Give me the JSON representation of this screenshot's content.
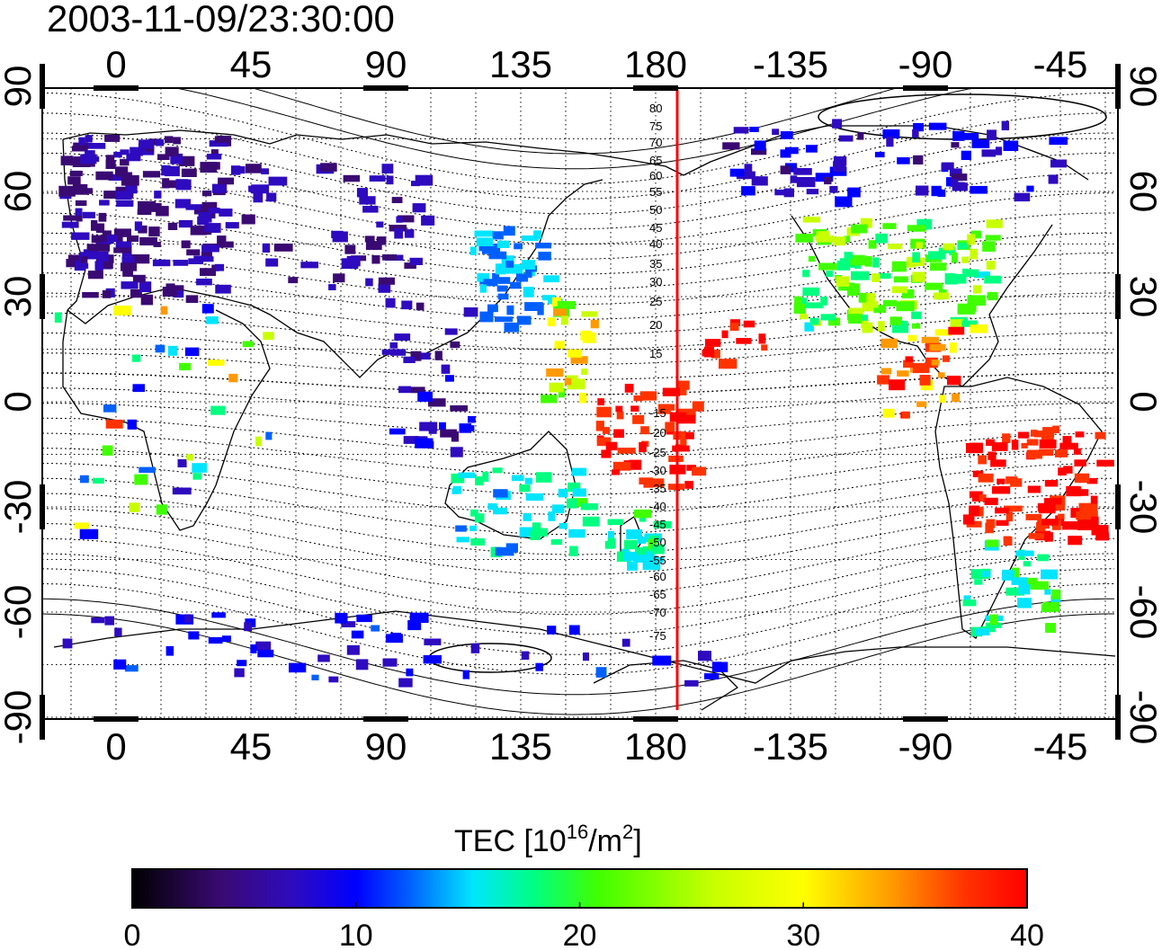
{
  "title": "2003-11-09/23:30:00",
  "map": {
    "top_lon_labels": [
      "0",
      "45",
      "90",
      "135",
      "180",
      "-135",
      "-90",
      "-45"
    ],
    "bottom_lon_labels": [
      "0",
      "45",
      "90",
      "135",
      "180",
      "-135",
      "-90",
      "-45"
    ],
    "left_lat_labels": [
      "90",
      "60",
      "30",
      "0",
      "-30",
      "-60",
      "-90"
    ],
    "right_lat_labels": [
      "90",
      "60",
      "30",
      "0",
      "-30",
      "-60",
      "-90"
    ],
    "magnetic_latitude_labels": [
      "80",
      "75",
      "70",
      "65",
      "60",
      "55",
      "50",
      "45",
      "40",
      "35",
      "30",
      "25",
      "20",
      "15",
      "-15",
      "-20",
      "-25",
      "-30",
      "-35",
      "-40",
      "-45",
      "-50",
      "-55",
      "-60",
      "-65",
      "-70",
      "-75"
    ],
    "red_line_label": "",
    "colors": {
      "red_line": "#ff0000",
      "grid": "#000000"
    }
  },
  "colorbar": {
    "title_main": "TEC  [10",
    "title_exp1": "16",
    "title_mid": "/m",
    "title_exp2": "2",
    "title_end": "]",
    "tick_labels": [
      "0",
      "10",
      "20",
      "30",
      "40"
    ],
    "range": [
      0,
      40
    ],
    "colormap": [
      "#000000",
      "#3a0a73",
      "#2e0bbf",
      "#0000ff",
      "#0060ff",
      "#00e5ff",
      "#00ff80",
      "#40ff00",
      "#c8ff00",
      "#ffff00",
      "#ff9900",
      "#ff3300",
      "#ff0000"
    ]
  }
}
